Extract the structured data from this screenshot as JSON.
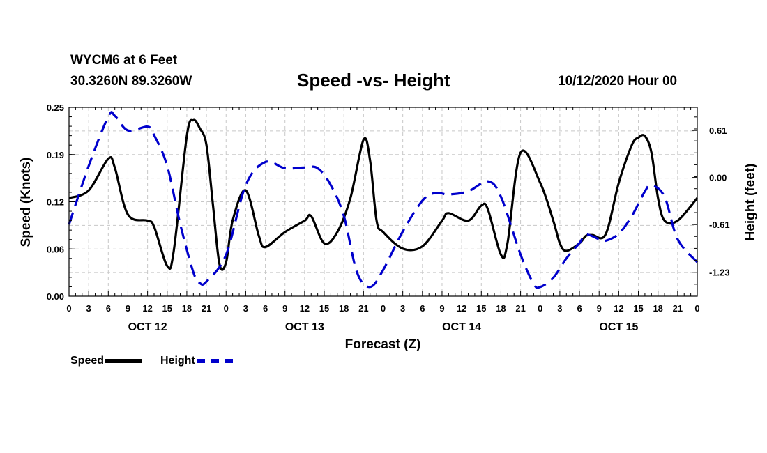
{
  "header": {
    "station": "WYCM6 at 6 Feet",
    "coords": "30.3260N 89.3260W",
    "title": "Speed -vs- Height",
    "run_time": "10/12/2020 Hour 00"
  },
  "chart_data": {
    "type": "line",
    "title": "Speed -vs- Height",
    "xlabel": "Forecast (Z)",
    "ylabel_left": "Speed (Knots)",
    "ylabel_right": "Height (feet)",
    "x_range": [
      0,
      96
    ],
    "x_tick_labels": [
      "0",
      "3",
      "6",
      "9",
      "12",
      "15",
      "18",
      "21",
      "0",
      "3",
      "6",
      "9",
      "12",
      "15",
      "18",
      "21",
      "0",
      "3",
      "6",
      "9",
      "12",
      "15",
      "18",
      "21",
      "0",
      "3",
      "6",
      "9",
      "12",
      "15",
      "18",
      "21",
      "0"
    ],
    "day_labels": [
      {
        "label": "OCT 12",
        "hour": 12
      },
      {
        "label": "OCT 13",
        "hour": 36
      },
      {
        "label": "OCT 14",
        "hour": 60
      },
      {
        "label": "OCT 15",
        "hour": 84
      }
    ],
    "y_left": {
      "range": [
        0,
        0.25
      ],
      "tick_values": [
        0,
        0.0625,
        0.125,
        0.1875,
        0.25
      ],
      "tick_labels": [
        "0.00",
        "0.06",
        "0.12",
        "0.19",
        "0.25"
      ]
    },
    "y_right": {
      "range": [
        -1.54,
        0.91
      ],
      "tick_values": [
        -1.23,
        -0.61,
        0.0,
        0.61
      ],
      "tick_labels": [
        "-1.23",
        "-0.61",
        "0.00",
        "0.61"
      ]
    },
    "grid": true,
    "legend": [
      {
        "label": "Speed",
        "style": "solid",
        "color": "#000000"
      },
      {
        "label": "Height",
        "style": "dashed",
        "color": "#0000cc"
      }
    ],
    "series": [
      {
        "name": "Speed",
        "axis": "left",
        "color": "#000000",
        "points": [
          [
            0,
            0.13
          ],
          [
            3,
            0.14
          ],
          [
            6,
            0.182
          ],
          [
            7,
            0.17
          ],
          [
            9,
            0.108
          ],
          [
            12,
            0.1
          ],
          [
            13,
            0.092
          ],
          [
            15,
            0.04
          ],
          [
            16,
            0.06
          ],
          [
            18,
            0.212
          ],
          [
            19,
            0.233
          ],
          [
            20,
            0.222
          ],
          [
            21,
            0.2
          ],
          [
            22,
            0.12
          ],
          [
            23,
            0.042
          ],
          [
            24,
            0.045
          ],
          [
            25,
            0.1
          ],
          [
            27,
            0.14
          ],
          [
            29,
            0.08
          ],
          [
            30,
            0.065
          ],
          [
            33,
            0.085
          ],
          [
            36,
            0.1
          ],
          [
            37,
            0.106
          ],
          [
            39,
            0.07
          ],
          [
            41,
            0.085
          ],
          [
            43,
            0.13
          ],
          [
            45,
            0.207
          ],
          [
            46,
            0.18
          ],
          [
            47,
            0.1
          ],
          [
            48,
            0.085
          ],
          [
            51,
            0.063
          ],
          [
            54,
            0.066
          ],
          [
            57,
            0.1
          ],
          [
            58,
            0.11
          ],
          [
            61,
            0.1
          ],
          [
            63,
            0.12
          ],
          [
            64,
            0.115
          ],
          [
            66,
            0.055
          ],
          [
            67,
            0.07
          ],
          [
            69,
            0.19
          ],
          [
            72,
            0.15
          ],
          [
            74,
            0.1
          ],
          [
            75,
            0.07
          ],
          [
            76,
            0.06
          ],
          [
            78,
            0.07
          ],
          [
            79,
            0.08
          ],
          [
            80,
            0.081
          ],
          [
            82,
            0.082
          ],
          [
            84,
            0.15
          ],
          [
            86,
            0.2
          ],
          [
            87,
            0.21
          ],
          [
            88,
            0.212
          ],
          [
            89,
            0.19
          ],
          [
            90,
            0.13
          ],
          [
            91,
            0.1
          ],
          [
            93,
            0.1
          ],
          [
            96,
            0.13
          ]
        ]
      },
      {
        "name": "Height",
        "axis": "right",
        "color": "#0000cc",
        "points": [
          [
            0,
            -0.61
          ],
          [
            3,
            0.15
          ],
          [
            6,
            0.79
          ],
          [
            7,
            0.8
          ],
          [
            9,
            0.61
          ],
          [
            12,
            0.66
          ],
          [
            13,
            0.55
          ],
          [
            15,
            0.15
          ],
          [
            17,
            -0.61
          ],
          [
            19,
            -1.23
          ],
          [
            20,
            -1.37
          ],
          [
            21,
            -1.35
          ],
          [
            24,
            -1.0
          ],
          [
            27,
            -0.1
          ],
          [
            30,
            0.2
          ],
          [
            33,
            0.12
          ],
          [
            36,
            0.13
          ],
          [
            38,
            0.12
          ],
          [
            40,
            -0.1
          ],
          [
            42,
            -0.5
          ],
          [
            44,
            -1.23
          ],
          [
            46,
            -1.42
          ],
          [
            48,
            -1.2
          ],
          [
            51,
            -0.7
          ],
          [
            54,
            -0.3
          ],
          [
            56,
            -0.2
          ],
          [
            58,
            -0.22
          ],
          [
            61,
            -0.18
          ],
          [
            64,
            -0.05
          ],
          [
            66,
            -0.25
          ],
          [
            69,
            -1.0
          ],
          [
            71,
            -1.38
          ],
          [
            72,
            -1.42
          ],
          [
            74,
            -1.3
          ],
          [
            76,
            -1.05
          ],
          [
            78,
            -0.85
          ],
          [
            79,
            -0.74
          ],
          [
            81,
            -0.8
          ],
          [
            82,
            -0.82
          ],
          [
            84,
            -0.73
          ],
          [
            86,
            -0.5
          ],
          [
            88,
            -0.18
          ],
          [
            89,
            -0.1
          ],
          [
            91,
            -0.25
          ],
          [
            93,
            -0.8
          ],
          [
            96,
            -1.1
          ]
        ]
      }
    ]
  }
}
